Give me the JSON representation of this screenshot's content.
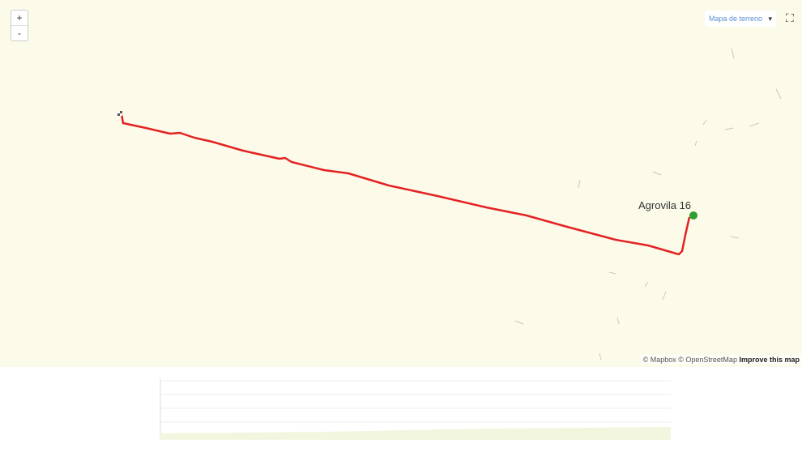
{
  "controls": {
    "zoom_in": "+",
    "zoom_out": "-",
    "layer_select": "Mapa de terreno"
  },
  "map": {
    "place_label": "Agrovila 16"
  },
  "attribution": {
    "text": "© Mapbox © OpenStreetMap",
    "link": "Improve this map"
  }
}
